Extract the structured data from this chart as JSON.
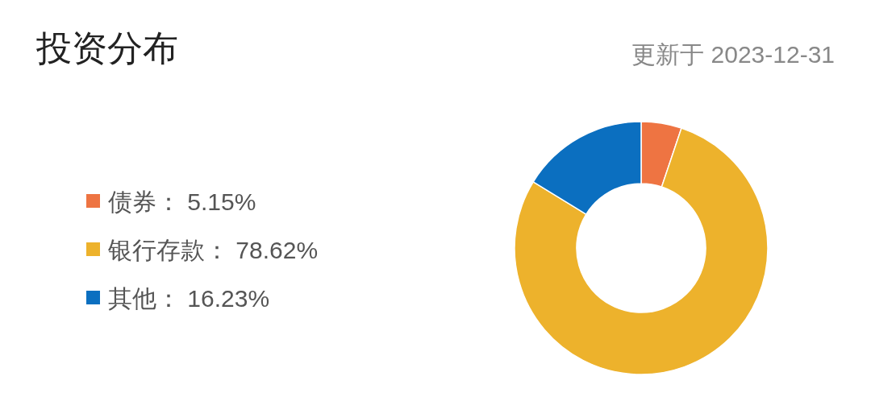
{
  "chart_data": {
    "type": "donut",
    "title": "投资分布",
    "subtitle": "更新于 2023-12-31",
    "categories": [
      "债券",
      "银行存款",
      "其他"
    ],
    "values": [
      5.15,
      78.62,
      16.23
    ],
    "value_labels": [
      "5.15%",
      "78.62%",
      "16.23%"
    ],
    "colors": [
      "#ee7442",
      "#edb22c",
      "#0b6fc0"
    ],
    "legend": "left"
  }
}
